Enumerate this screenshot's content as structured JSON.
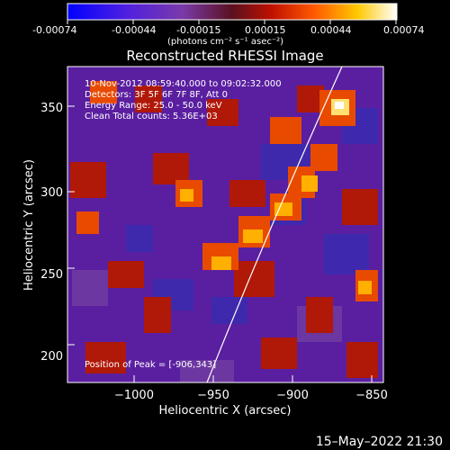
{
  "colorbar": {
    "tick_labels": [
      "-0.00074",
      "-0.00044",
      "-0.00015",
      "0.00015",
      "0.00044",
      "0.00074"
    ],
    "units_label": "(photons cm⁻² s⁻¹ asec⁻²)"
  },
  "plot": {
    "title": "Reconstructed RHESSI Image",
    "info_lines": [
      "10-Nov-2012 08:59:40.000 to 09:02:32.000",
      "Detectors: 3F 5F 6F 7F 8F, Att 0",
      "Energy Range: 25.0 - 50.0 keV",
      "Clean     Total counts: 5.36E+03"
    ],
    "peak_label": "Position of Peak = [-906,343]",
    "xlabel": "Heliocentric X (arcsec)",
    "ylabel": "Heliocentric Y (arcsec)",
    "x_ticks": [
      "−1000",
      "−950",
      "−900",
      "−850"
    ],
    "y_ticks": [
      "200",
      "250",
      "300",
      "350"
    ]
  },
  "footer": {
    "timestamp": "15–May–2022 21:30"
  }
}
